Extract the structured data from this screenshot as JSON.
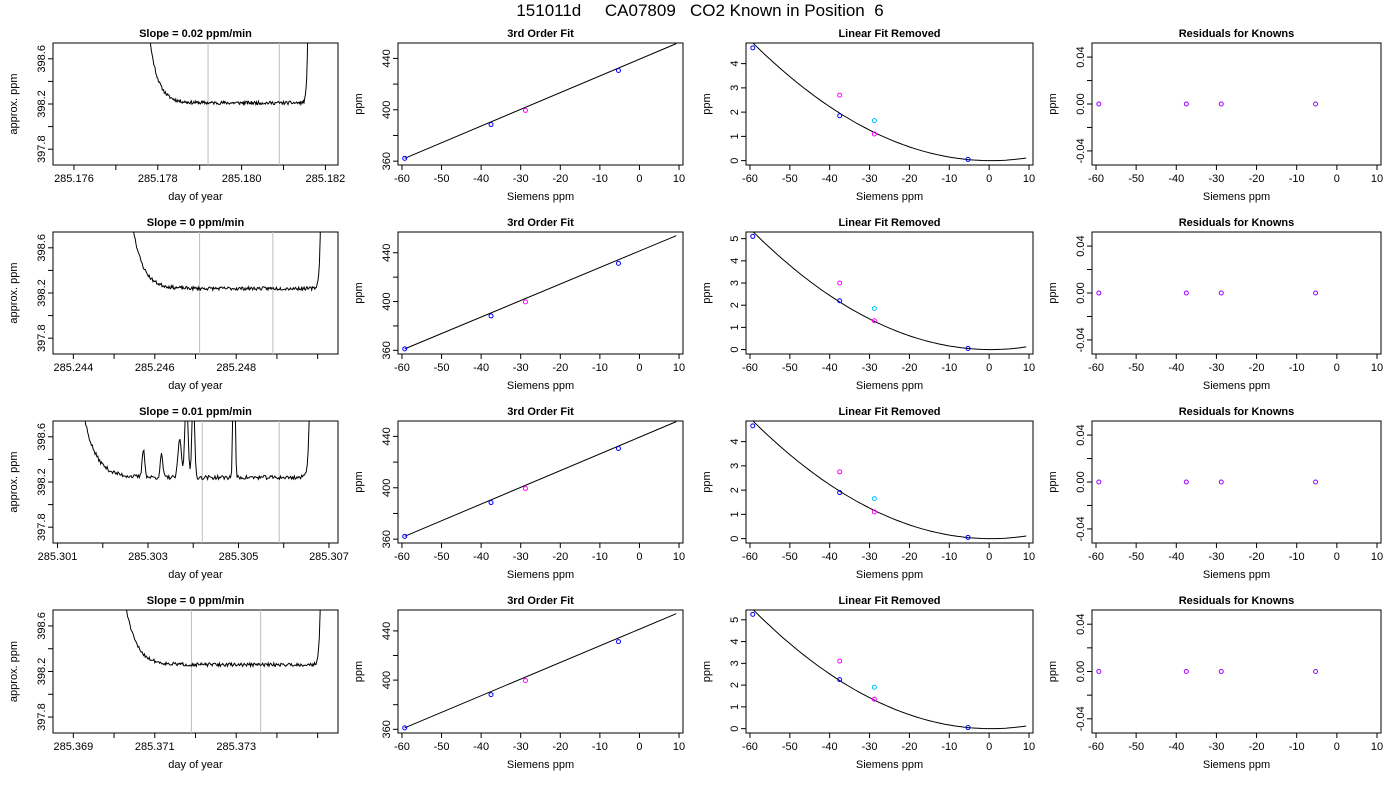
{
  "page": {
    "title": "151011d     CA07809   CO2 Known in Position  6"
  },
  "colors": {
    "pt_blue": "#0000ff",
    "pt_magenta": "#ff00ff",
    "pt_cyan": "#00bfff",
    "pt_purple": "#a000ff",
    "vline": "#bebebe"
  },
  "chart_data": [
    {
      "type": "line",
      "title": "Slope =  0.02  ppm/min",
      "xlabel": "day of year",
      "ylabel": "approx. ppm",
      "xlim": [
        285.1755,
        285.1823
      ],
      "ylim": [
        397.66,
        398.74
      ],
      "xticks": [
        285.176,
        285.177,
        285.178,
        285.179,
        285.18,
        285.181,
        285.182
      ],
      "xticklabels": [
        "285.176",
        "",
        "285.178",
        "",
        "285.180",
        "",
        "285.182"
      ],
      "yticks": [
        397.8,
        398.0,
        398.2,
        398.4,
        398.6
      ],
      "yticklabels": [
        "397.8",
        "",
        "398.2",
        "",
        "398.6"
      ],
      "vlines": [
        285.1792,
        285.1809
      ],
      "trace": {
        "start": 285.1776,
        "end": 285.1816,
        "base": 398.21,
        "noise": 0.015,
        "seed": 11,
        "spikes": []
      }
    },
    {
      "type": "scatter",
      "title": "3rd Order Fit",
      "xlabel": "Siemens ppm",
      "ylabel": "ppm",
      "xlim": [
        -61,
        11
      ],
      "ylim": [
        357,
        452
      ],
      "xticks": [
        -60,
        -50,
        -40,
        -30,
        -20,
        -10,
        0,
        10
      ],
      "yticks": [
        360,
        380,
        400,
        420,
        440
      ],
      "yticklabels": [
        "360",
        "",
        "400",
        "",
        "440"
      ],
      "points": [
        {
          "x": -59.3,
          "y": 362.2,
          "color": "blue"
        },
        {
          "x": -37.5,
          "y": 388.5,
          "color": "blue"
        },
        {
          "x": -28.8,
          "y": 399.5,
          "color": "magenta"
        },
        {
          "x": -5.3,
          "y": 430.6,
          "color": "blue"
        }
      ],
      "fit_line": {
        "x0": -59.3,
        "y0": 362.2,
        "x1": 9.3,
        "y1": 451.5
      }
    },
    {
      "type": "scatter",
      "title": "Linear Fit Removed",
      "xlabel": "Siemens ppm",
      "ylabel": "ppm",
      "xlim": [
        -61,
        11
      ],
      "ylim": [
        -0.18,
        4.85
      ],
      "xticks": [
        -60,
        -50,
        -40,
        -30,
        -20,
        -10,
        0,
        10
      ],
      "yticks": [
        0,
        1,
        2,
        3,
        4
      ],
      "points": [
        {
          "x": -59.3,
          "y": 4.65,
          "color": "blue"
        },
        {
          "x": -37.5,
          "y": 1.85,
          "color": "blue"
        },
        {
          "x": -37.5,
          "y": 2.7,
          "color": "magenta"
        },
        {
          "x": -28.8,
          "y": 1.65,
          "color": "cyan"
        },
        {
          "x": -28.8,
          "y": 1.1,
          "color": "magenta"
        },
        {
          "x": -5.3,
          "y": 0.05,
          "color": "blue"
        }
      ],
      "curve": {
        "a": 0.001363,
        "vertex": 0.4,
        "xmin": -59.3,
        "xmax": 9.3
      }
    },
    {
      "type": "scatter",
      "title": "Residuals for Knowns",
      "xlabel": "Siemens ppm",
      "ylabel": "ppm",
      "xlim": [
        -61,
        11
      ],
      "ylim": [
        -0.052,
        0.052
      ],
      "xticks": [
        -60,
        -50,
        -40,
        -30,
        -20,
        -10,
        0,
        10
      ],
      "yticks": [
        -0.04,
        -0.02,
        0.0,
        0.02,
        0.04
      ],
      "yticklabels": [
        "-0.04",
        "",
        "0.00",
        "",
        "0.04"
      ],
      "points": [
        {
          "x": -59.3,
          "y": 0,
          "color": "purple"
        },
        {
          "x": -37.5,
          "y": 0,
          "color": "purple"
        },
        {
          "x": -28.8,
          "y": 0,
          "color": "purple"
        },
        {
          "x": -5.3,
          "y": 0,
          "color": "purple"
        }
      ]
    },
    {
      "type": "line",
      "title": "Slope =  0  ppm/min",
      "xlabel": "day of year",
      "ylabel": "approx. ppm",
      "xlim": [
        285.2435,
        285.2505
      ],
      "ylim": [
        397.66,
        398.74
      ],
      "xticks": [
        285.244,
        285.245,
        285.246,
        285.247,
        285.248,
        285.249,
        285.25
      ],
      "xticklabels": [
        "285.244",
        "",
        "285.246",
        "",
        "285.248",
        "",
        ""
      ],
      "yticks": [
        397.8,
        398.0,
        398.2,
        398.4,
        398.6
      ],
      "yticklabels": [
        "397.8",
        "",
        "398.2",
        "",
        "398.6"
      ],
      "vlines": [
        285.2471,
        285.2489
      ],
      "trace": {
        "start": 285.2452,
        "end": 285.2501,
        "base": 398.24,
        "noise": 0.015,
        "seed": 23,
        "spikes": []
      }
    },
    {
      "type": "scatter",
      "title": "3rd Order Fit",
      "xlabel": "Siemens ppm",
      "ylabel": "ppm",
      "xlim": [
        -61,
        11
      ],
      "ylim": [
        357,
        457
      ],
      "xticks": [
        -60,
        -50,
        -40,
        -30,
        -20,
        -10,
        0,
        10
      ],
      "yticks": [
        360,
        380,
        400,
        420,
        440
      ],
      "yticklabels": [
        "360",
        "",
        "400",
        "",
        "440"
      ],
      "points": [
        {
          "x": -59.3,
          "y": 361.2,
          "color": "blue"
        },
        {
          "x": -37.5,
          "y": 388.2,
          "color": "blue"
        },
        {
          "x": -28.8,
          "y": 399.7,
          "color": "magenta"
        },
        {
          "x": -5.3,
          "y": 431.3,
          "color": "blue"
        }
      ],
      "fit_line": {
        "x0": -59.3,
        "y0": 361.2,
        "x1": 9.3,
        "y1": 454.0
      }
    },
    {
      "type": "scatter",
      "title": "Linear Fit Removed",
      "xlabel": "Siemens ppm",
      "ylabel": "ppm",
      "xlim": [
        -61,
        11
      ],
      "ylim": [
        -0.2,
        5.3
      ],
      "xticks": [
        -60,
        -50,
        -40,
        -30,
        -20,
        -10,
        0,
        10
      ],
      "yticks": [
        0,
        1,
        2,
        3,
        4,
        5
      ],
      "points": [
        {
          "x": -59.3,
          "y": 5.1,
          "color": "blue"
        },
        {
          "x": -37.5,
          "y": 2.2,
          "color": "blue"
        },
        {
          "x": -37.5,
          "y": 3.0,
          "color": "magenta"
        },
        {
          "x": -28.8,
          "y": 1.85,
          "color": "cyan"
        },
        {
          "x": -28.8,
          "y": 1.3,
          "color": "magenta"
        },
        {
          "x": -5.3,
          "y": 0.05,
          "color": "blue"
        }
      ],
      "curve": {
        "a": 0.001494,
        "vertex": 0.4,
        "xmin": -59.3,
        "xmax": 9.3
      }
    },
    {
      "type": "scatter",
      "title": "Residuals for Knowns",
      "xlabel": "Siemens ppm",
      "ylabel": "ppm",
      "xlim": [
        -61,
        11
      ],
      "ylim": [
        -0.052,
        0.052
      ],
      "xticks": [
        -60,
        -50,
        -40,
        -30,
        -20,
        -10,
        0,
        10
      ],
      "yticks": [
        -0.04,
        -0.02,
        0.0,
        0.02,
        0.04
      ],
      "yticklabels": [
        "-0.04",
        "",
        "0.00",
        "",
        "0.04"
      ],
      "points": [
        {
          "x": -59.3,
          "y": 0,
          "color": "purple"
        },
        {
          "x": -37.5,
          "y": 0,
          "color": "purple"
        },
        {
          "x": -28.8,
          "y": 0,
          "color": "purple"
        },
        {
          "x": -5.3,
          "y": 0,
          "color": "purple"
        }
      ]
    },
    {
      "type": "line",
      "title": "Slope =  0.01  ppm/min",
      "xlabel": "day of year",
      "ylabel": "approx. ppm",
      "xlim": [
        285.3009,
        285.3072
      ],
      "ylim": [
        397.66,
        398.74
      ],
      "xticks": [
        285.301,
        285.302,
        285.303,
        285.304,
        285.305,
        285.306,
        285.307
      ],
      "xticklabels": [
        "285.301",
        "",
        "285.303",
        "",
        "285.305",
        "",
        "285.307"
      ],
      "vlines": [
        285.3042,
        285.3059
      ],
      "yticks": [
        397.8,
        398.0,
        398.2,
        398.4,
        398.6
      ],
      "yticklabels": [
        "397.8",
        "",
        "398.2",
        "",
        "398.6"
      ],
      "trace": {
        "start": 285.3013,
        "end": 285.3066,
        "base": 398.24,
        "noise": 0.018,
        "seed": 37,
        "spikes": [
          {
            "x": 285.3029,
            "h": 0.25,
            "w": 4e-05
          },
          {
            "x": 285.3033,
            "h": 0.2,
            "w": 4e-05
          },
          {
            "x": 285.3037,
            "h": 0.35,
            "w": 5e-05
          },
          {
            "x": 285.30385,
            "h": 0.7,
            "w": 5e-05
          },
          {
            "x": 285.304,
            "h": 0.75,
            "w": 4e-05
          },
          {
            "x": 285.3049,
            "h": 1.5,
            "w": 3e-05
          }
        ]
      }
    },
    {
      "type": "scatter",
      "title": "3rd Order Fit",
      "xlabel": "Siemens ppm",
      "ylabel": "ppm",
      "xlim": [
        -61,
        11
      ],
      "ylim": [
        357,
        452
      ],
      "xticks": [
        -60,
        -50,
        -40,
        -30,
        -20,
        -10,
        0,
        10
      ],
      "yticks": [
        360,
        380,
        400,
        420,
        440
      ],
      "yticklabels": [
        "360",
        "",
        "400",
        "",
        "440"
      ],
      "points": [
        {
          "x": -59.3,
          "y": 362.2,
          "color": "blue"
        },
        {
          "x": -37.5,
          "y": 388.5,
          "color": "blue"
        },
        {
          "x": -28.8,
          "y": 399.5,
          "color": "magenta"
        },
        {
          "x": -5.3,
          "y": 430.6,
          "color": "blue"
        }
      ],
      "fit_line": {
        "x0": -59.3,
        "y0": 362.2,
        "x1": 9.3,
        "y1": 451.5
      }
    },
    {
      "type": "scatter",
      "title": "Linear Fit Removed",
      "xlabel": "Siemens ppm",
      "ylabel": "ppm",
      "xlim": [
        -61,
        11
      ],
      "ylim": [
        -0.18,
        4.85
      ],
      "xticks": [
        -60,
        -50,
        -40,
        -30,
        -20,
        -10,
        0,
        10
      ],
      "yticks": [
        0,
        1,
        2,
        3,
        4
      ],
      "points": [
        {
          "x": -59.3,
          "y": 4.65,
          "color": "blue"
        },
        {
          "x": -37.5,
          "y": 1.9,
          "color": "blue"
        },
        {
          "x": -37.5,
          "y": 2.75,
          "color": "magenta"
        },
        {
          "x": -28.8,
          "y": 1.65,
          "color": "cyan"
        },
        {
          "x": -28.8,
          "y": 1.1,
          "color": "magenta"
        },
        {
          "x": -5.3,
          "y": 0.05,
          "color": "blue"
        }
      ],
      "curve": {
        "a": 0.001363,
        "vertex": 0.4,
        "xmin": -59.3,
        "xmax": 9.3
      }
    },
    {
      "type": "scatter",
      "title": "Residuals for Knowns",
      "xlabel": "Siemens ppm",
      "ylabel": "ppm",
      "xlim": [
        -61,
        11
      ],
      "ylim": [
        -0.052,
        0.052
      ],
      "xticks": [
        -60,
        -50,
        -40,
        -30,
        -20,
        -10,
        0,
        10
      ],
      "yticks": [
        -0.04,
        -0.02,
        0.0,
        0.02,
        0.04
      ],
      "yticklabels": [
        "-0.04",
        "",
        "0.00",
        "",
        "0.04"
      ],
      "points": [
        {
          "x": -59.3,
          "y": 0,
          "color": "purple"
        },
        {
          "x": -37.5,
          "y": 0,
          "color": "purple"
        },
        {
          "x": -28.8,
          "y": 0,
          "color": "purple"
        },
        {
          "x": -5.3,
          "y": 0,
          "color": "purple"
        }
      ]
    },
    {
      "type": "line",
      "title": "Slope =  0  ppm/min",
      "xlabel": "day of year",
      "ylabel": "approx. ppm",
      "xlim": [
        285.3685,
        285.3755
      ],
      "ylim": [
        397.66,
        398.74
      ],
      "xticks": [
        285.369,
        285.37,
        285.371,
        285.372,
        285.373,
        285.374,
        285.375
      ],
      "xticklabels": [
        "285.369",
        "",
        "285.371",
        "",
        "285.373",
        "",
        ""
      ],
      "yticks": [
        397.8,
        398.0,
        398.2,
        398.4,
        398.6
      ],
      "yticklabels": [
        "397.8",
        "",
        "398.2",
        "",
        "398.6"
      ],
      "vlines": [
        285.3719,
        285.3736
      ],
      "trace": {
        "start": 285.37,
        "end": 285.3751,
        "base": 398.26,
        "noise": 0.015,
        "seed": 51,
        "spikes": []
      }
    },
    {
      "type": "scatter",
      "title": "3rd Order Fit",
      "xlabel": "Siemens ppm",
      "ylabel": "ppm",
      "xlim": [
        -61,
        11
      ],
      "ylim": [
        357,
        457
      ],
      "xticks": [
        -60,
        -50,
        -40,
        -30,
        -20,
        -10,
        0,
        10
      ],
      "yticks": [
        360,
        380,
        400,
        420,
        440
      ],
      "yticklabels": [
        "360",
        "",
        "400",
        "",
        "440"
      ],
      "points": [
        {
          "x": -59.3,
          "y": 361.2,
          "color": "blue"
        },
        {
          "x": -37.5,
          "y": 388.2,
          "color": "blue"
        },
        {
          "x": -28.8,
          "y": 399.7,
          "color": "magenta"
        },
        {
          "x": -5.3,
          "y": 431.3,
          "color": "blue"
        }
      ],
      "fit_line": {
        "x0": -59.3,
        "y0": 361.2,
        "x1": 9.3,
        "y1": 454.0
      }
    },
    {
      "type": "scatter",
      "title": "Linear Fit Removed",
      "xlabel": "Siemens ppm",
      "ylabel": "ppm",
      "xlim": [
        -61,
        11
      ],
      "ylim": [
        -0.2,
        5.45
      ],
      "xticks": [
        -60,
        -50,
        -40,
        -30,
        -20,
        -10,
        0,
        10
      ],
      "yticks": [
        0,
        1,
        2,
        3,
        4,
        5
      ],
      "points": [
        {
          "x": -59.3,
          "y": 5.25,
          "color": "blue"
        },
        {
          "x": -37.5,
          "y": 2.25,
          "color": "blue"
        },
        {
          "x": -37.5,
          "y": 3.1,
          "color": "magenta"
        },
        {
          "x": -28.8,
          "y": 1.9,
          "color": "cyan"
        },
        {
          "x": -28.8,
          "y": 1.35,
          "color": "magenta"
        },
        {
          "x": -5.3,
          "y": 0.05,
          "color": "blue"
        }
      ],
      "curve": {
        "a": 0.001538,
        "vertex": 0.4,
        "xmin": -59.3,
        "xmax": 9.3
      }
    },
    {
      "type": "scatter",
      "title": "Residuals for Knowns",
      "xlabel": "Siemens ppm",
      "ylabel": "ppm",
      "xlim": [
        -61,
        11
      ],
      "ylim": [
        -0.052,
        0.052
      ],
      "xticks": [
        -60,
        -50,
        -40,
        -30,
        -20,
        -10,
        0,
        10
      ],
      "yticks": [
        -0.04,
        -0.02,
        0.0,
        0.02,
        0.04
      ],
      "yticklabels": [
        "-0.04",
        "",
        "0.00",
        "",
        "0.04"
      ],
      "points": [
        {
          "x": -59.3,
          "y": 0,
          "color": "purple"
        },
        {
          "x": -37.5,
          "y": 0,
          "color": "purple"
        },
        {
          "x": -28.8,
          "y": 0,
          "color": "purple"
        },
        {
          "x": -5.3,
          "y": 0,
          "color": "purple"
        }
      ]
    }
  ]
}
